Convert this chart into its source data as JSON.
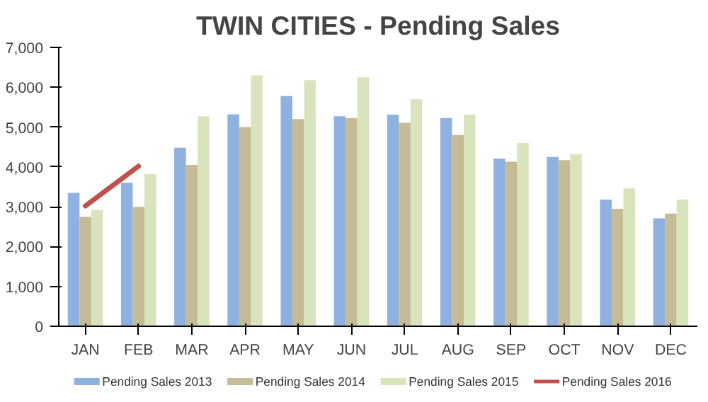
{
  "chart_data": {
    "type": "bar",
    "title": "TWIN CITIES - Pending Sales",
    "categories": [
      "JAN",
      "FEB",
      "MAR",
      "APR",
      "MAY",
      "JUN",
      "JUL",
      "AUG",
      "SEP",
      "OCT",
      "NOV",
      "DEC"
    ],
    "series": [
      {
        "name": "Pending Sales 2013",
        "color": "#8eb1e0",
        "values": [
          3350,
          3600,
          4480,
          5320,
          5780,
          5270,
          5310,
          5230,
          4210,
          4250,
          3180,
          2710
        ]
      },
      {
        "name": "Pending Sales 2014",
        "color": "#c4bb97",
        "values": [
          2750,
          3000,
          4050,
          5000,
          5200,
          5230,
          5110,
          4800,
          4130,
          4170,
          2950,
          2830
        ]
      },
      {
        "name": "Pending Sales 2015",
        "color": "#d8e4bc",
        "values": [
          2920,
          3820,
          5270,
          6300,
          6180,
          6250,
          5700,
          5310,
          4600,
          4320,
          3460,
          3180
        ]
      },
      {
        "name": "Pending Sales 2016",
        "color": "#c0504d",
        "type": "line",
        "values": [
          3020,
          4020,
          null,
          null,
          null,
          null,
          null,
          null,
          null,
          null,
          null,
          null
        ]
      }
    ],
    "ylim": [
      0,
      7000
    ],
    "yticks": [
      0,
      {
        "value": 1000,
        "label": "1,000"
      },
      {
        "value": 2000,
        "label": "2,000"
      },
      {
        "value": 3000,
        "label": "3,000"
      },
      {
        "value": 4000,
        "label": "4,000"
      },
      {
        "value": 5000,
        "label": "5,000"
      },
      {
        "value": 6000,
        "label": "6,000"
      },
      {
        "value": 7000,
        "label": "7,000"
      }
    ],
    "grid": false,
    "legend": "bottom"
  }
}
